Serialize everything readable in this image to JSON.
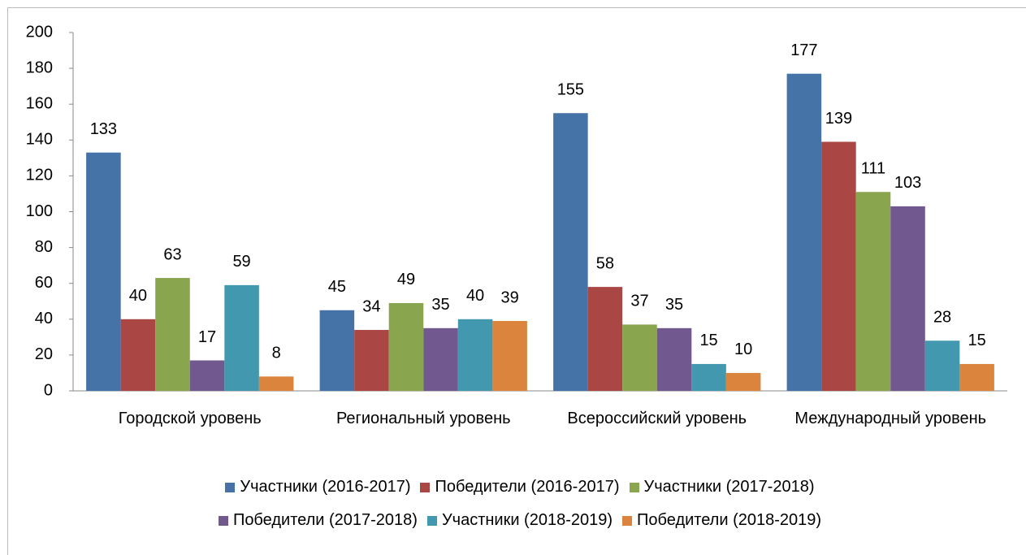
{
  "chart_data": {
    "type": "bar",
    "categories": [
      "Городской уровень",
      "Региональный уровень",
      "Всероссийский уровень",
      "Международный уровень"
    ],
    "series": [
      {
        "name": "Участники (2016-2017)",
        "color": "#4572a7",
        "values": [
          133,
          45,
          155,
          177
        ]
      },
      {
        "name": "Победители (2016-2017)",
        "color": "#aa4643",
        "values": [
          40,
          34,
          58,
          139
        ]
      },
      {
        "name": "Участники (2017-2018)",
        "color": "#89a54e",
        "values": [
          63,
          49,
          37,
          111
        ]
      },
      {
        "name": "Победители (2017-2018)",
        "color": "#71588f",
        "values": [
          17,
          35,
          35,
          103
        ]
      },
      {
        "name": "Участники (2018-2019)",
        "color": "#4198af",
        "values": [
          59,
          40,
          15,
          28
        ]
      },
      {
        "name": "Победители (2018-2019)",
        "color": "#db843d",
        "values": [
          8,
          39,
          10,
          15
        ]
      }
    ],
    "ylim": [
      0,
      200
    ],
    "yticks": [
      0,
      20,
      40,
      60,
      80,
      100,
      120,
      140,
      160,
      180,
      200
    ],
    "legend": "bottom"
  }
}
